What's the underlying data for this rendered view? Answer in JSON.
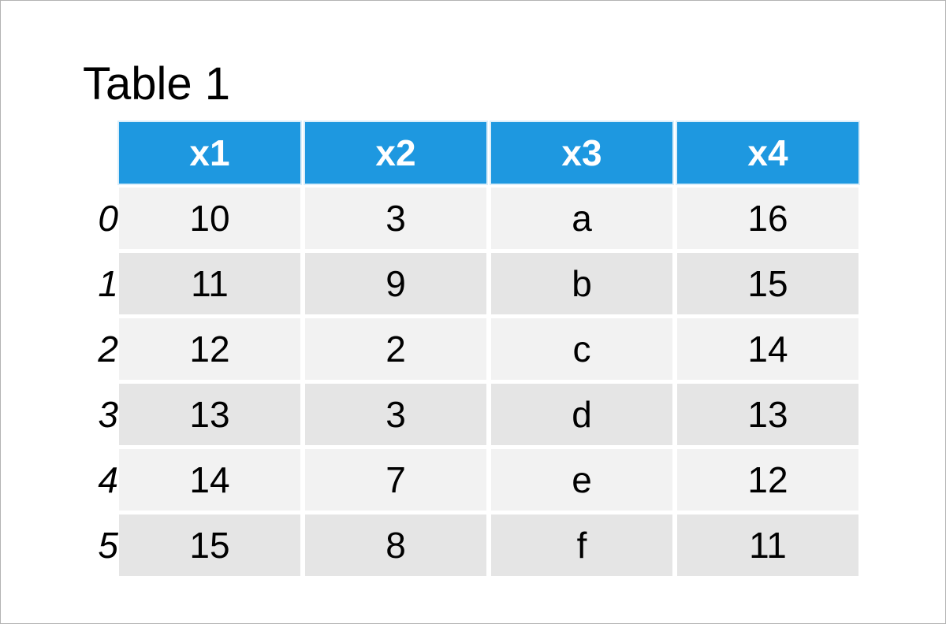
{
  "title": "Table 1",
  "table": {
    "columns": [
      "x1",
      "x2",
      "x3",
      "x4"
    ],
    "index": [
      "0",
      "1",
      "2",
      "3",
      "4",
      "5"
    ],
    "rows": [
      [
        "10",
        "3",
        "a",
        "16"
      ],
      [
        "11",
        "9",
        "b",
        "15"
      ],
      [
        "12",
        "2",
        "c",
        "14"
      ],
      [
        "13",
        "3",
        "d",
        "13"
      ],
      [
        "14",
        "7",
        "e",
        "12"
      ],
      [
        "15",
        "8",
        "f",
        "11"
      ]
    ]
  },
  "colors": {
    "header_bg": "#1e98e0",
    "row_light": "#f2f2f2",
    "row_dark": "#e5e5e5"
  }
}
